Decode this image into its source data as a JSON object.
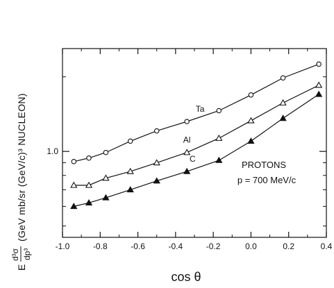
{
  "chart_data": {
    "type": "scatter",
    "x_label": "cos θ",
    "y_label": "(GeV mb/sr (GeV/c)³ NUCLEON)",
    "y_label_prefix": "E",
    "y_label_fraction_numerator": "d³σ",
    "y_label_fraction_denominator": "dp³",
    "x_range": [
      -1.0,
      0.4
    ],
    "y_scale": "log",
    "y_range": [
      0.45,
      2.6
    ],
    "x_ticks": [
      -1.0,
      -0.8,
      -0.6,
      -0.4,
      -0.2,
      0.0,
      0.2,
      0.4
    ],
    "x_tick_labels": [
      "-1.0",
      "-0.8",
      "-0.6",
      "-0.4",
      "-0.2",
      "0.0",
      "0.2",
      "0.4"
    ],
    "y_tick_label": "1.0",
    "annotation_lines": [
      "PROTONS",
      "p = 700 MeV/c"
    ],
    "grid": false,
    "series": [
      {
        "name": "Ta",
        "marker": "open-circle",
        "x": [
          -0.94,
          -0.86,
          -0.77,
          -0.64,
          -0.5,
          -0.34,
          -0.17,
          0.0,
          0.17,
          0.36
        ],
        "y": [
          0.91,
          0.94,
          0.99,
          1.1,
          1.21,
          1.32,
          1.46,
          1.69,
          1.98,
          2.25
        ]
      },
      {
        "name": "Al",
        "marker": "open-triangle",
        "x": [
          -0.94,
          -0.86,
          -0.77,
          -0.64,
          -0.5,
          -0.34,
          -0.17,
          0.0,
          0.17,
          0.36
        ],
        "y": [
          0.73,
          0.73,
          0.78,
          0.83,
          0.9,
          0.99,
          1.13,
          1.33,
          1.57,
          1.85
        ]
      },
      {
        "name": "C",
        "marker": "filled-triangle",
        "x": [
          -0.94,
          -0.86,
          -0.77,
          -0.64,
          -0.5,
          -0.34,
          -0.17,
          0.0,
          0.17,
          0.36
        ],
        "y": [
          0.6,
          0.62,
          0.65,
          0.7,
          0.76,
          0.83,
          0.92,
          1.1,
          1.36,
          1.7
        ]
      }
    ]
  }
}
